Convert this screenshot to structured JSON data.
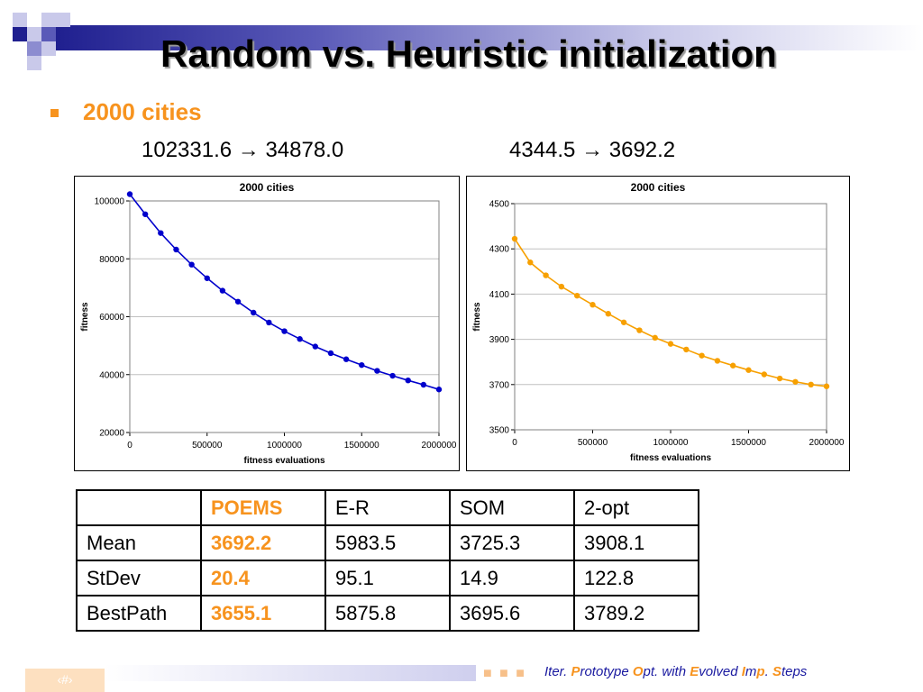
{
  "slide": {
    "title": "Random vs. Heuristic initialization",
    "bullet": "2000 cities",
    "left_summary": "102331.6 → 34878.0",
    "right_summary": "4344.5 → 3692.2",
    "slide_number": "‹#›"
  },
  "colors": {
    "accent": "#f7931e",
    "navy": "#1f1f8f",
    "series_left": "#0000cc",
    "series_right": "#f7a000"
  },
  "chart_data": [
    {
      "type": "line",
      "title": "2000 cities",
      "xlabel": "fitness evaluations",
      "ylabel": "fitness",
      "xlim": [
        0,
        2000000
      ],
      "ylim": [
        20000,
        100000
      ],
      "xticks": [
        0,
        500000,
        1000000,
        1500000,
        2000000
      ],
      "yticks": [
        20000,
        40000,
        60000,
        80000,
        100000
      ],
      "grid": "horizontal",
      "series": [
        {
          "color": "#0000cc",
          "x": [
            0,
            100000,
            200000,
            300000,
            400000,
            500000,
            600000,
            700000,
            800000,
            900000,
            1000000,
            1100000,
            1200000,
            1300000,
            1400000,
            1500000,
            1600000,
            1700000,
            1800000,
            1900000,
            2000000
          ],
          "y": [
            102331.6,
            95400,
            88900,
            83200,
            78000,
            73300,
            69000,
            65200,
            61400,
            58000,
            55000,
            52300,
            49700,
            47400,
            45300,
            43300,
            41300,
            39600,
            38000,
            36500,
            34878.0
          ]
        }
      ]
    },
    {
      "type": "line",
      "title": "2000 cities",
      "xlabel": "fitness evaluations",
      "ylabel": "fitness",
      "xlim": [
        0,
        2000000
      ],
      "ylim": [
        3500,
        4500
      ],
      "xticks": [
        0,
        500000,
        1000000,
        1500000,
        2000000
      ],
      "yticks": [
        3500,
        3700,
        3900,
        4100,
        4300,
        4500
      ],
      "grid": "horizontal",
      "series": [
        {
          "color": "#f7a000",
          "x": [
            0,
            100000,
            200000,
            300000,
            400000,
            500000,
            600000,
            700000,
            800000,
            900000,
            1000000,
            1100000,
            1200000,
            1300000,
            1400000,
            1500000,
            1600000,
            1700000,
            1800000,
            1900000,
            2000000
          ],
          "y": [
            4344.5,
            4240,
            4183,
            4133,
            4093,
            4053,
            4013,
            3975,
            3940,
            3907,
            3880,
            3855,
            3828,
            3805,
            3784,
            3764,
            3745,
            3727,
            3712,
            3700,
            3692.2
          ]
        }
      ]
    }
  ],
  "table": {
    "header": [
      "",
      "POEMS",
      "E-R",
      "SOM",
      "2-opt"
    ],
    "rows": [
      [
        "Mean",
        "3692.2",
        "5983.5",
        "3725.3",
        "3908.1"
      ],
      [
        "StDev",
        "20.4",
        "95.1",
        "14.9",
        "122.8"
      ],
      [
        "BestPath",
        "3655.1",
        "5875.8",
        "3695.6",
        "3789.2"
      ]
    ]
  },
  "footer": {
    "dots": "■ ■ ■",
    "parts": [
      {
        "text": "Iter. ",
        "cap": false
      },
      {
        "text": "P",
        "cap": true
      },
      {
        "text": "rototype ",
        "cap": false
      },
      {
        "text": "O",
        "cap": true
      },
      {
        "text": "pt. with ",
        "cap": false
      },
      {
        "text": "E",
        "cap": true
      },
      {
        "text": "volved ",
        "cap": false
      },
      {
        "text": "I",
        "cap": true
      },
      {
        "text": "m",
        "cap": false
      },
      {
        "text": "p",
        "cap": true
      },
      {
        "text": ". ",
        "cap": false
      },
      {
        "text": "S",
        "cap": true
      },
      {
        "text": "teps",
        "cap": false
      }
    ]
  }
}
